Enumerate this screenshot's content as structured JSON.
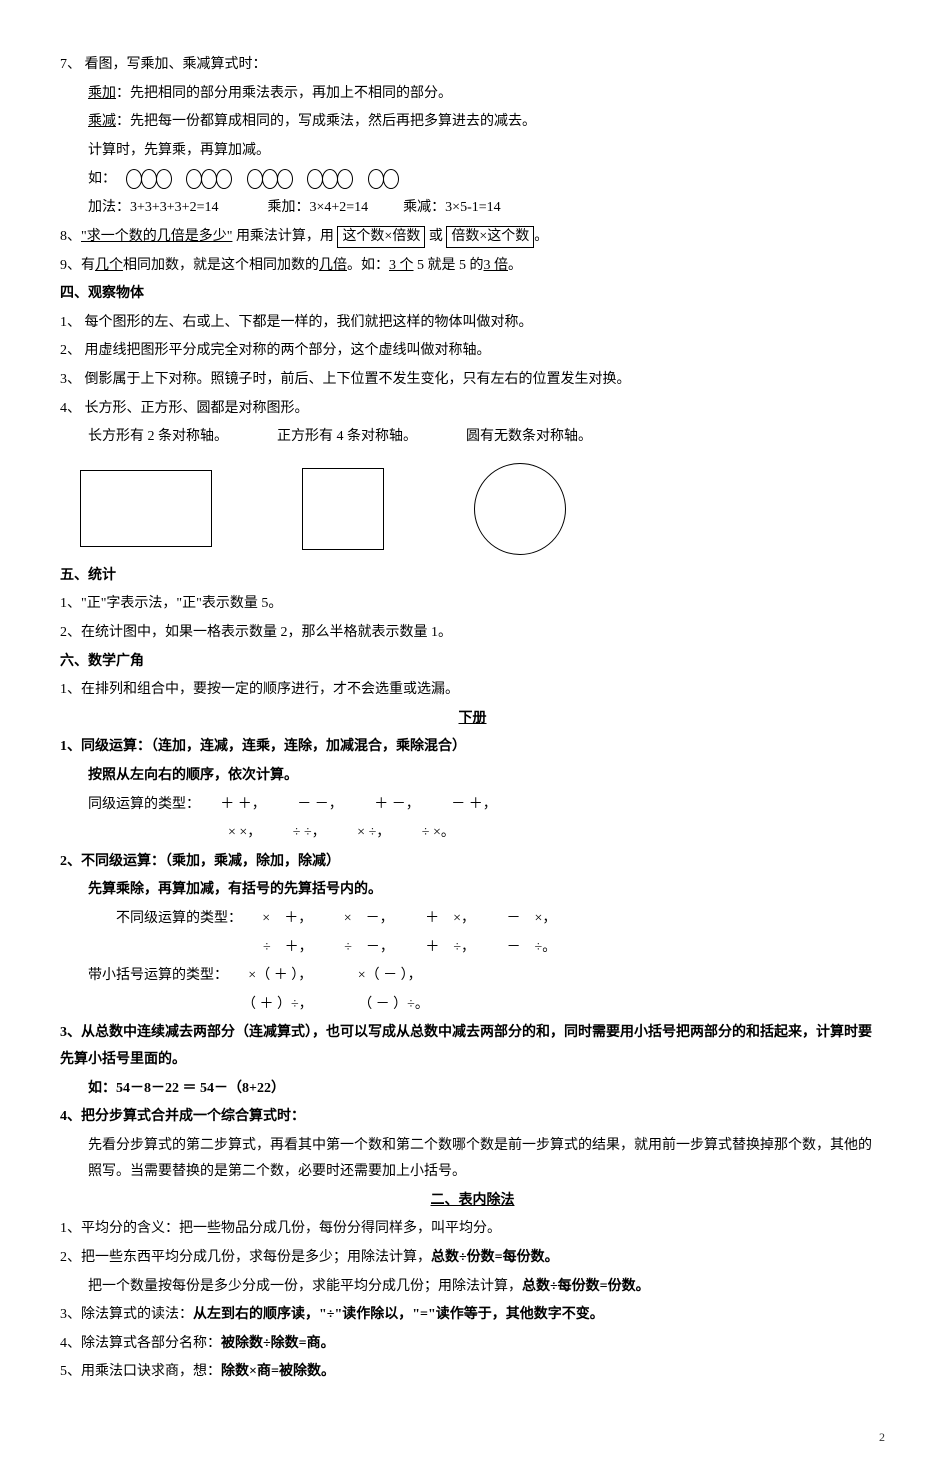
{
  "p7": {
    "head": "7、 看图，写乘加、乘减算式时：",
    "cj_label": "乘加",
    "cj_rest": "：先把相同的部分用乘法表示，再加上不相同的部分。",
    "cx_label": "乘减",
    "cx_rest": "：先把每一份都算成相同的，写成乘法，然后再把多算进去的减去。",
    "calc": "计算时，先算乘，再算加减。",
    "ru": "如：",
    "add": "加法：3+3+3+3+2=14",
    "cj_eq": "乘加：3×4+2=14",
    "cx_eq": "乘减：3×5-1=14"
  },
  "p8": {
    "pre": "8、",
    "q": "\"求一个数的几倍是多少\"",
    "mid": " 用乘法计算，用 ",
    "box1": "这个数×倍数",
    "or": " 或 ",
    "box2": "倍数×这个数",
    "end": "。"
  },
  "p9": {
    "a": "9、有",
    "b": "几个",
    "c": "相同加数，就是这个相同加数的",
    "d": "几倍",
    "e": "。如：",
    "f": "3 个",
    "g": " 5   就是 5 的",
    "h": "3 倍",
    "i": "。"
  },
  "s4": {
    "title": "四、观察物体",
    "l1": "1、 每个图形的左、右或上、下都是一样的，我们就把这样的物体叫做对称。",
    "l2": "2、 用虚线把图形平分成完全对称的两个部分，这个虚线叫做对称轴。",
    "l3": "3、 倒影属于上下对称。照镜子时，前后、上下位置不发生变化，只有左右的位置发生对换。",
    "l4": "4、 长方形、正方形、圆都是对称图形。",
    "axis_a": "长方形有 2 条对称轴。",
    "axis_b": "正方形有 4 条对称轴。",
    "axis_c": "圆有无数条对称轴。"
  },
  "s5": {
    "title": "五、统计",
    "l1": "1、\"正\"字表示法，\"正\"表示数量 5。",
    "l2": "2、在统计图中，如果一格表示数量 2，那么半格就表示数量 1。"
  },
  "s6": {
    "title": "六、数学广角",
    "l1": "1、在排列和组合中，要按一定的顺序进行，才不会选重或选漏。"
  },
  "xiace": "下册",
  "d1": {
    "head": "1、同级运算：（连加，连减，连乘，连除，加减混合，乘除混合）",
    "rule": "按照从左向右的顺序，依次计算。",
    "types_label": "同级运算的类型：",
    "row1_a": "＋ ＋，",
    "row1_b": "－ －，",
    "row1_c": "＋ －，",
    "row1_d": "－ ＋，",
    "row2_a": "× ×，",
    "row2_b": "÷ ÷，",
    "row2_c": "× ÷，",
    "row2_d": "÷ ×。"
  },
  "d2": {
    "head": "2、不同级运算：（乘加，乘减，除加，除减）",
    "rule": "先算乘除，再算加减，有括号的先算括号内的。",
    "types_label": "不同级运算的类型：",
    "r1a": "×　＋，",
    "r1b": "×　－，",
    "r1c": "＋　×，",
    "r1d": "－　×，",
    "r2a": "÷　＋，",
    "r2b": "÷　－，",
    "r2c": "＋　÷，",
    "r2d": "－　÷。",
    "br_label": "带小括号运算的类型：",
    "br1a": "×（ ＋ ），",
    "br1b": "×（ － ），",
    "br2a": "（ ＋ ）÷，",
    "br2b": "（ － ）÷。"
  },
  "d3": {
    "main": "3、从总数中连续减去两部分（连减算式），也可以写成从总数中减去两部分的和，同时需要用小括号把两部分的和括起来，计算时要先算小括号里面的。",
    "eg": "如：54－8－22 ＝ 54－（8+22）"
  },
  "d4": {
    "head": "4、把分步算式合并成一个综合算式时：",
    "body": "先看分步算式的第二步算式，再看其中第一个数和第二个数哪个数是前一步算式的结果，就用前一步算式替换掉那个数，其他的照写。当需要替换的是第二个数，必要时还需要加上小括号。"
  },
  "sec2_title": "二、表内除法",
  "e1": "1、平均分的含义：把一些物品分成几份，每份分得同样多，叫平均分。",
  "e2a": "2、把一些东西平均分成几份，求每份是多少；用除法计算，",
  "e2a_b": "总数÷份数=每份数。",
  "e2b": "把一个数量按每份是多少分成一份，求能平均分成几份；用除法计算，",
  "e2b_b": "总数÷每份数=份数。",
  "e3a": "3、除法算式的读法：",
  "e3b": "从左到右的顺序读，\"÷\"读作除以，\"=\"读作等于，其他数字不变。",
  "e4a": "4、除法算式各部分名称：",
  "e4b": "被除数÷除数=商。",
  "e5a": "5、用乘法口诀求商，想：",
  "e5b": "除数×商=被除数。",
  "page": "2"
}
